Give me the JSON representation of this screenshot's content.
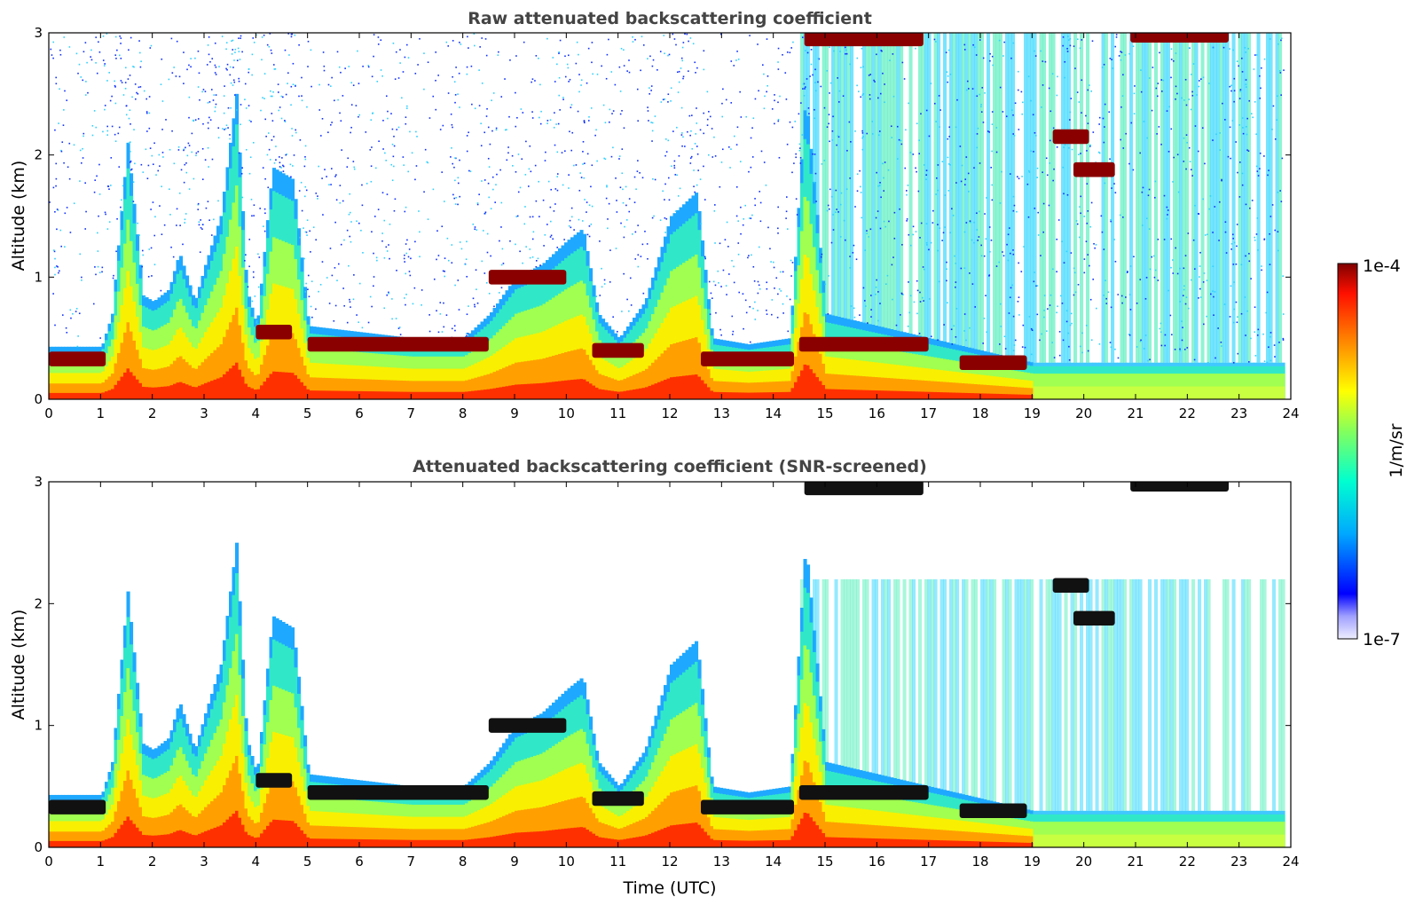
{
  "chart_data": [
    {
      "type": "heatmap",
      "title": "Raw attenuated backscattering coefficient",
      "xlabel": "",
      "ylabel": "Altitude (km)",
      "xlim": [
        0,
        24
      ],
      "ylim": [
        0,
        3
      ],
      "xticks": [
        "0",
        "1",
        "2",
        "3",
        "4",
        "5",
        "6",
        "7",
        "8",
        "9",
        "10",
        "11",
        "12",
        "13",
        "14",
        "15",
        "16",
        "17",
        "18",
        "19",
        "20",
        "21",
        "22",
        "23",
        "24"
      ],
      "yticks": [
        "0",
        "1",
        "2",
        "3"
      ],
      "boundary_layer_top_km": [
        [
          0,
          0.43
        ],
        [
          1.0,
          0.43
        ],
        [
          1.2,
          0.7
        ],
        [
          1.5,
          2.1
        ],
        [
          1.8,
          0.85
        ],
        [
          2.0,
          0.8
        ],
        [
          2.3,
          0.9
        ],
        [
          2.5,
          1.2
        ],
        [
          2.8,
          0.8
        ],
        [
          3.0,
          1.1
        ],
        [
          3.3,
          1.5
        ],
        [
          3.6,
          2.5
        ],
        [
          3.8,
          0.9
        ],
        [
          4.0,
          0.6
        ],
        [
          4.3,
          1.9
        ],
        [
          4.7,
          1.8
        ],
        [
          5.0,
          0.6
        ],
        [
          6,
          0.55
        ],
        [
          7,
          0.5
        ],
        [
          8,
          0.5
        ],
        [
          8.5,
          0.7
        ],
        [
          9,
          1.0
        ],
        [
          9.5,
          1.1
        ],
        [
          10,
          1.3
        ],
        [
          10.3,
          1.4
        ],
        [
          10.6,
          0.7
        ],
        [
          11,
          0.5
        ],
        [
          11.5,
          0.8
        ],
        [
          12,
          1.5
        ],
        [
          12.5,
          1.7
        ],
        [
          12.8,
          0.5
        ],
        [
          13.5,
          0.45
        ],
        [
          14.3,
          0.5
        ],
        [
          14.6,
          2.5
        ],
        [
          15,
          0.7
        ],
        [
          16,
          0.6
        ],
        [
          17,
          0.5
        ],
        [
          18,
          0.4
        ],
        [
          19,
          0.3
        ],
        [
          20,
          0.3
        ],
        [
          24,
          0.3
        ]
      ],
      "cloud_layers_km": [
        {
          "t_start": 0,
          "t_end": 1.1,
          "alt": 0.33
        },
        {
          "t_start": 4.0,
          "t_end": 4.7,
          "alt": 0.55
        },
        {
          "t_start": 5.0,
          "t_end": 8.5,
          "alt": 0.45
        },
        {
          "t_start": 8.5,
          "t_end": 10.0,
          "alt": 1.0
        },
        {
          "t_start": 10.5,
          "t_end": 11.5,
          "alt": 0.4
        },
        {
          "t_start": 12.6,
          "t_end": 14.4,
          "alt": 0.33
        },
        {
          "t_start": 14.5,
          "t_end": 17.0,
          "alt": 0.45
        },
        {
          "t_start": 17.6,
          "t_end": 18.9,
          "alt": 0.3
        },
        {
          "t_start": 14.6,
          "t_end": 16.9,
          "alt": 2.95
        },
        {
          "t_start": 19.4,
          "t_end": 20.1,
          "alt": 2.15
        },
        {
          "t_start": 19.8,
          "t_end": 20.6,
          "alt": 1.88
        },
        {
          "t_start": 20.9,
          "t_end": 22.8,
          "alt": 2.98
        }
      ]
    },
    {
      "type": "heatmap",
      "title": "Attenuated backscattering coefficient (SNR-screened)",
      "xlabel": "Time (UTC)",
      "ylabel": "Altitude (km)",
      "xlim": [
        0,
        24
      ],
      "ylim": [
        0,
        3
      ],
      "xticks": [
        "0",
        "1",
        "2",
        "3",
        "4",
        "5",
        "6",
        "7",
        "8",
        "9",
        "10",
        "11",
        "12",
        "13",
        "14",
        "15",
        "16",
        "17",
        "18",
        "19",
        "20",
        "21",
        "22",
        "23",
        "24"
      ],
      "yticks": [
        "0",
        "1",
        "2",
        "3"
      ]
    }
  ],
  "colorbar": {
    "max_label": "1e-4",
    "min_label": "1e-7",
    "unit_label": "1/m/sr",
    "colors": [
      "#e8e8ff",
      "#0000ff",
      "#00a0ff",
      "#00ffd0",
      "#80ff60",
      "#ffff00",
      "#ff9000",
      "#ff2000",
      "#800000"
    ]
  }
}
